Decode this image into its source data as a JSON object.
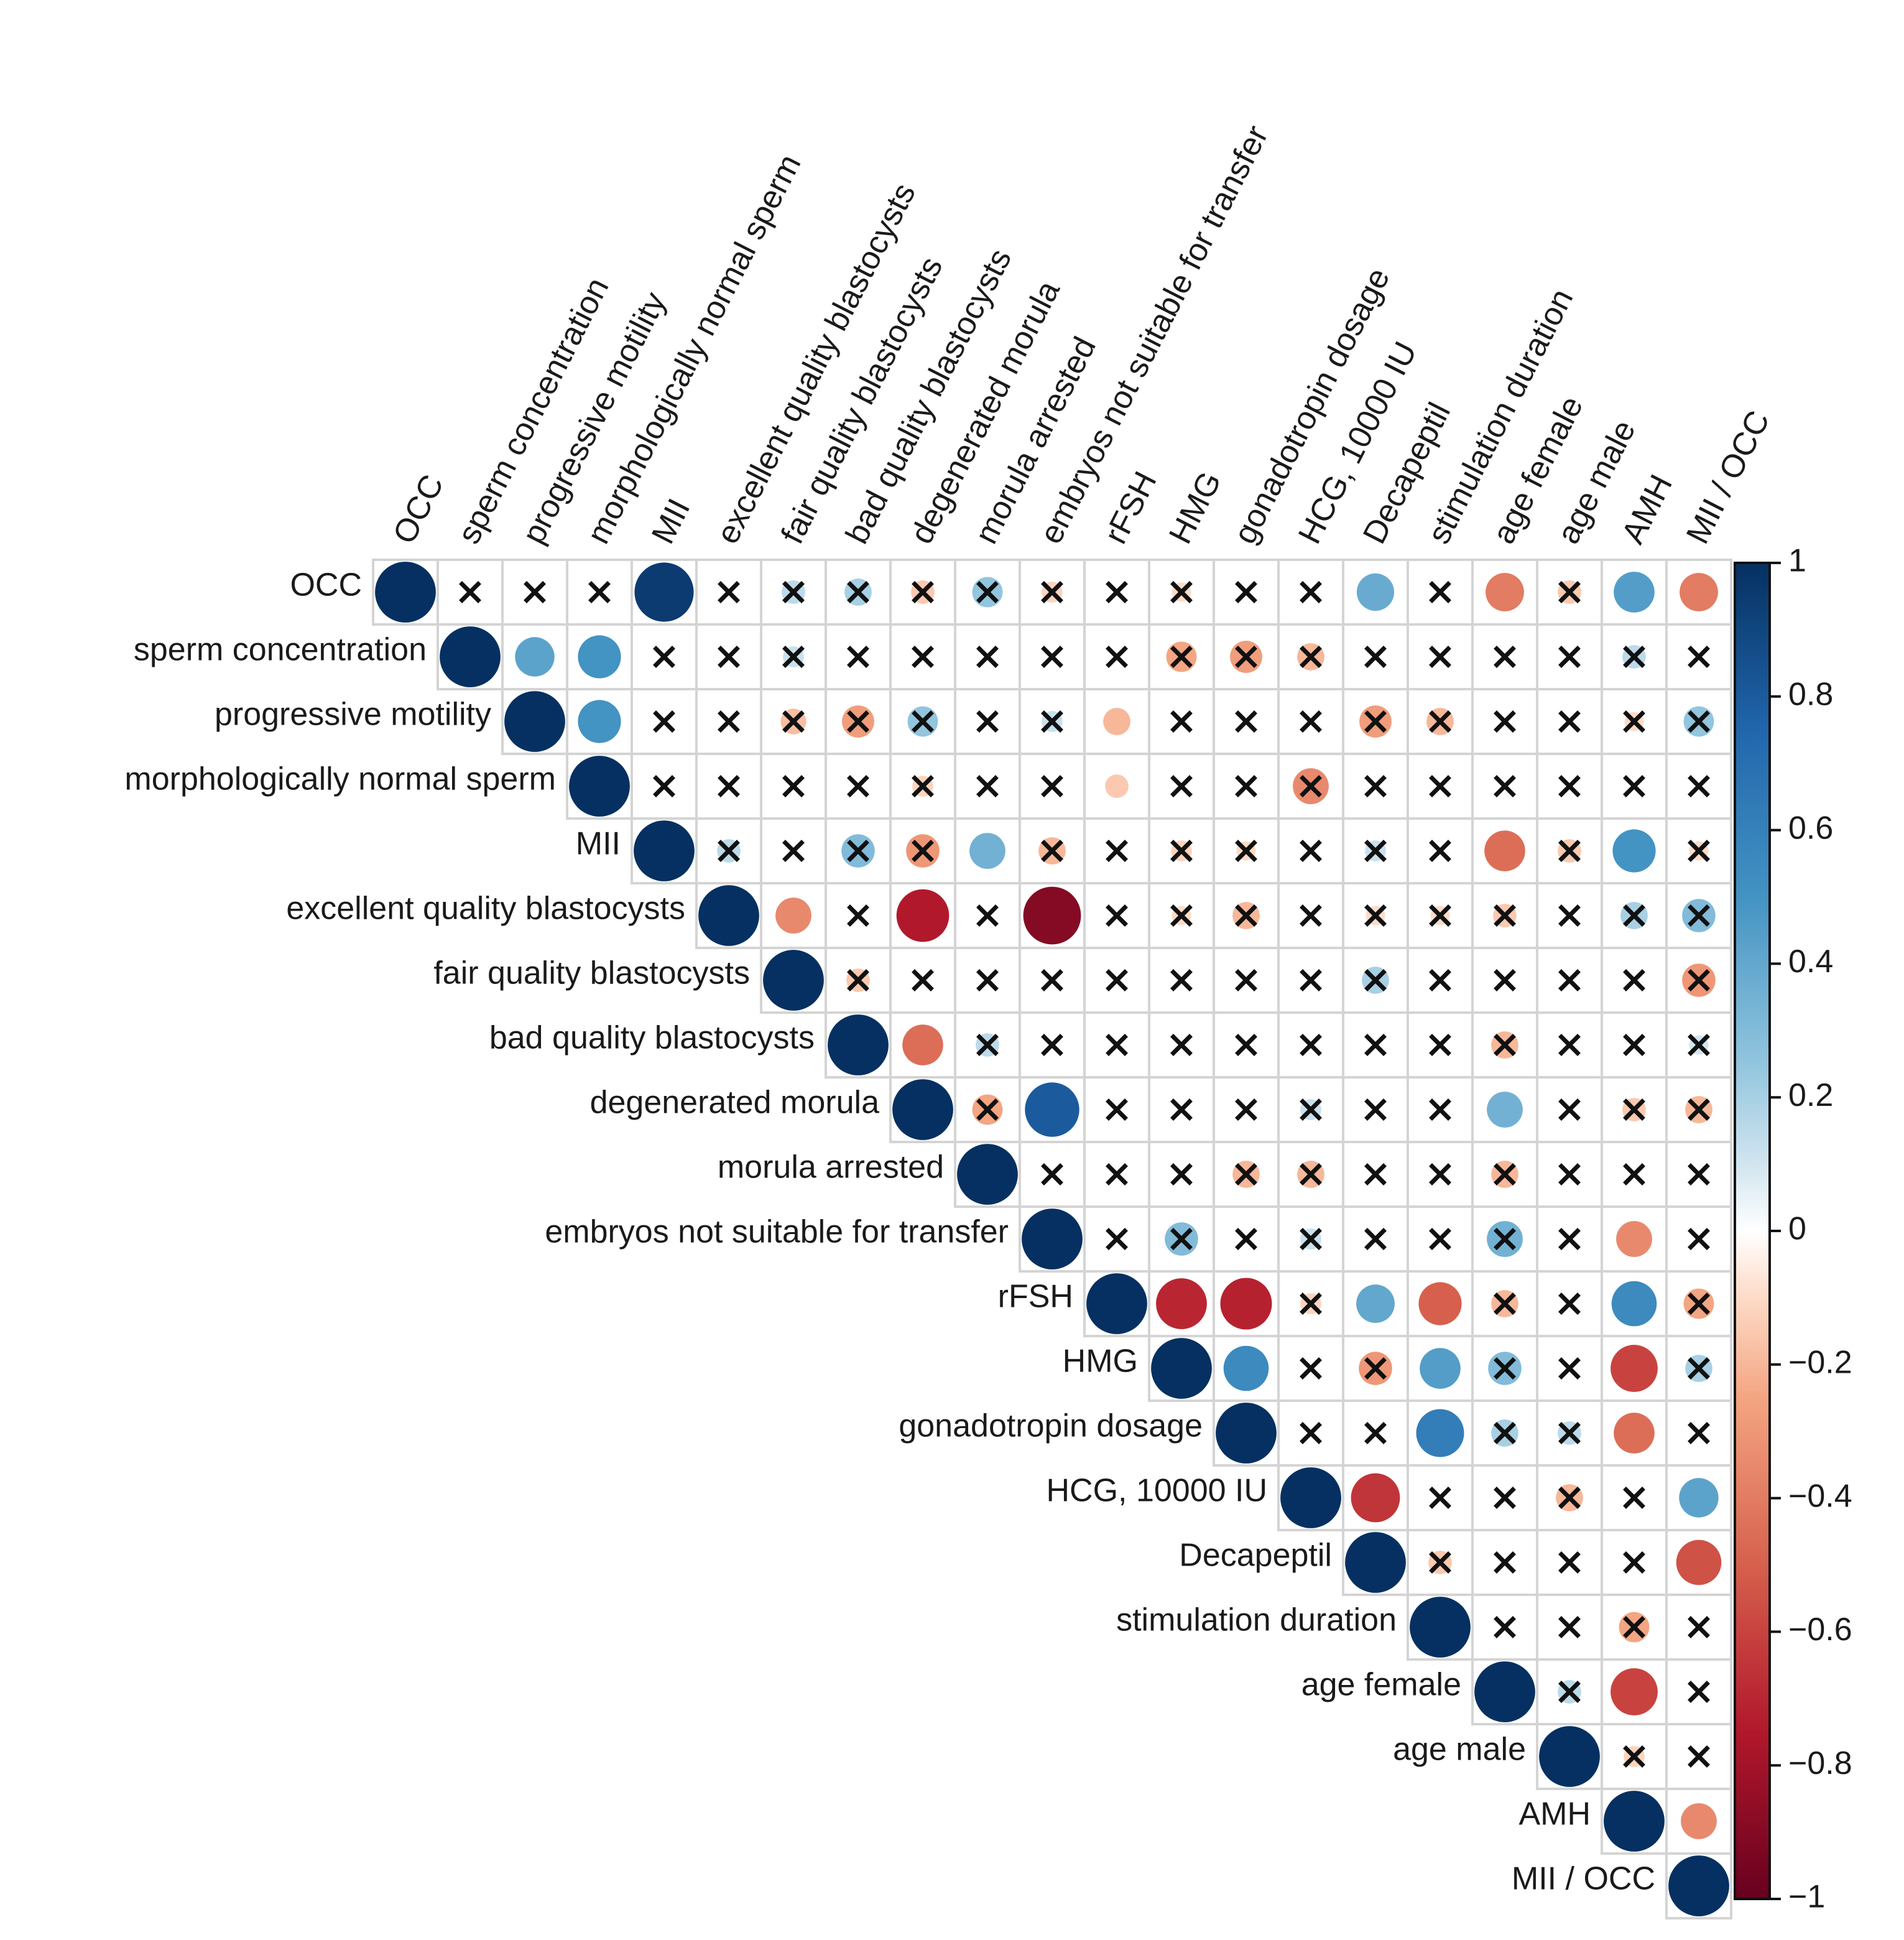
{
  "chart_data": {
    "type": "heatmap",
    "title": "",
    "variables": [
      "OCC",
      "sperm concentration",
      "progressive motility",
      "morphologically normal sperm",
      "MII",
      "excellent quality blastocysts",
      "fair quality  blastocysts",
      "bad quality blastocysts",
      "degenerated  morula",
      "morula   arrested",
      "embryos not suitable for transfer",
      "rFSH",
      "HMG",
      "gonadotropin dosage",
      "HCG, 10000 IU",
      "Decapeptil",
      "stimulation duration",
      "age female",
      "age male",
      "AMH",
      "MII / OCC"
    ],
    "row_labels": [
      "OCC",
      "sperm concentration",
      "progressive motility",
      "morphologically normal sperm",
      "MII",
      "excellent quality blastocysts",
      "fair quality blastocysts",
      "bad quality blastocysts",
      "degenerated morula",
      "morula   arrested",
      "embryos not suitable for transfer",
      "rFSH",
      "HMG",
      "gonadotropin dosage",
      "HCG, 10000 IU",
      "Decapeptil",
      "stimulation duration",
      "age female",
      "age male",
      "AMH",
      "MII / OCC"
    ],
    "layout": "upper-triangle",
    "marker": "circle sized and colored by correlation; x = not significant",
    "matrix": [
      [
        1.0,
        -0.02,
        0.02,
        0.03,
        0.95,
        0.05,
        0.15,
        0.2,
        -0.15,
        0.25,
        -0.12,
        0.02,
        -0.1,
        0.03,
        0.05,
        0.38,
        -0.05,
        -0.4,
        -0.15,
        0.45,
        -0.4
      ],
      [
        null,
        1.0,
        0.42,
        0.5,
        0.02,
        0.02,
        0.12,
        0.05,
        0.03,
        0.02,
        0.02,
        0.02,
        -0.25,
        -0.28,
        -0.2,
        0.02,
        0.05,
        0.02,
        0.05,
        0.15,
        0.02
      ],
      [
        null,
        null,
        1.0,
        0.5,
        0.02,
        0.02,
        -0.18,
        -0.28,
        0.25,
        0.05,
        0.12,
        -0.2,
        0.05,
        0.02,
        0.02,
        -0.28,
        -0.2,
        0.02,
        0.05,
        -0.1,
        0.25
      ],
      [
        null,
        null,
        null,
        1.0,
        0.02,
        0.02,
        0.02,
        0.05,
        -0.12,
        0.02,
        0.05,
        -0.15,
        0.02,
        0.02,
        -0.35,
        0.02,
        0.02,
        0.05,
        0.05,
        0.02,
        0.02
      ],
      [
        null,
        null,
        null,
        null,
        1.0,
        0.15,
        0.02,
        0.3,
        -0.3,
        0.35,
        -0.2,
        0.02,
        -0.12,
        -0.1,
        0.05,
        0.12,
        0.02,
        -0.45,
        -0.15,
        0.5,
        -0.1
      ],
      [
        null,
        null,
        null,
        null,
        null,
        1.0,
        -0.35,
        0.02,
        -0.75,
        0.02,
        -0.9,
        0.02,
        -0.1,
        -0.2,
        0.05,
        -0.1,
        -0.1,
        -0.15,
        0.02,
        0.2,
        0.3
      ],
      [
        null,
        null,
        null,
        null,
        null,
        null,
        1.0,
        -0.15,
        0.02,
        0.02,
        0.02,
        0.02,
        0.02,
        0.05,
        0.05,
        0.2,
        0.02,
        0.05,
        0.02,
        0.05,
        -0.3
      ],
      [
        null,
        null,
        null,
        null,
        null,
        null,
        null,
        1.0,
        -0.45,
        0.15,
        0.02,
        0.02,
        0.02,
        0.02,
        0.02,
        0.05,
        0.02,
        -0.2,
        0.02,
        0.02,
        0.1
      ],
      [
        null,
        null,
        null,
        null,
        null,
        null,
        null,
        null,
        1.0,
        -0.25,
        0.8,
        0.02,
        0.02,
        0.05,
        0.12,
        0.02,
        0.02,
        0.35,
        0.02,
        -0.15,
        -0.2
      ],
      [
        null,
        null,
        null,
        null,
        null,
        null,
        null,
        null,
        null,
        1.0,
        0.02,
        0.02,
        0.02,
        -0.2,
        -0.2,
        0.02,
        0.02,
        -0.2,
        0.02,
        0.02,
        0.02
      ],
      [
        null,
        null,
        null,
        null,
        null,
        null,
        null,
        null,
        null,
        null,
        1.0,
        0.02,
        0.3,
        0.02,
        0.12,
        0.02,
        0.02,
        0.35,
        0.02,
        -0.35,
        0.02
      ],
      [
        null,
        null,
        null,
        null,
        null,
        null,
        null,
        null,
        null,
        null,
        null,
        1.0,
        -0.7,
        -0.72,
        -0.12,
        0.4,
        -0.5,
        -0.2,
        0.02,
        0.55,
        -0.25
      ],
      [
        null,
        null,
        null,
        null,
        null,
        null,
        null,
        null,
        null,
        null,
        null,
        null,
        1.0,
        0.55,
        0.02,
        -0.3,
        0.45,
        0.3,
        0.02,
        -0.6,
        0.2
      ],
      [
        null,
        null,
        null,
        null,
        null,
        null,
        null,
        null,
        null,
        null,
        null,
        null,
        null,
        1.0,
        0.02,
        0.02,
        0.62,
        0.2,
        0.15,
        -0.45,
        0.02
      ],
      [
        null,
        null,
        null,
        null,
        null,
        null,
        null,
        null,
        null,
        null,
        null,
        null,
        null,
        null,
        1.0,
        -0.65,
        0.02,
        0.02,
        -0.2,
        0.02,
        0.42
      ],
      [
        null,
        null,
        null,
        null,
        null,
        null,
        null,
        null,
        null,
        null,
        null,
        null,
        null,
        null,
        null,
        1.0,
        -0.15,
        0.02,
        0.05,
        0.05,
        -0.55
      ],
      [
        null,
        null,
        null,
        null,
        null,
        null,
        null,
        null,
        null,
        null,
        null,
        null,
        null,
        null,
        null,
        null,
        1.0,
        0.02,
        0.02,
        -0.25,
        0.02
      ],
      [
        null,
        null,
        null,
        null,
        null,
        null,
        null,
        null,
        null,
        null,
        null,
        null,
        null,
        null,
        null,
        null,
        null,
        1.0,
        0.15,
        -0.6,
        0.02
      ],
      [
        null,
        null,
        null,
        null,
        null,
        null,
        null,
        null,
        null,
        null,
        null,
        null,
        null,
        null,
        null,
        null,
        null,
        null,
        1.0,
        -0.12,
        0.02
      ],
      [
        null,
        null,
        null,
        null,
        null,
        null,
        null,
        null,
        null,
        null,
        null,
        null,
        null,
        null,
        null,
        null,
        null,
        null,
        null,
        1.0,
        -0.35
      ],
      [
        null,
        null,
        null,
        null,
        null,
        null,
        null,
        null,
        null,
        null,
        null,
        null,
        null,
        null,
        null,
        null,
        null,
        null,
        null,
        null,
        1.0
      ]
    ],
    "not_significant": [
      [
        0,
        1
      ],
      [
        0,
        2
      ],
      [
        0,
        3
      ],
      [
        0,
        5
      ],
      [
        0,
        6
      ],
      [
        0,
        7
      ],
      [
        0,
        8
      ],
      [
        0,
        9
      ],
      [
        0,
        10
      ],
      [
        0,
        11
      ],
      [
        0,
        12
      ],
      [
        0,
        13
      ],
      [
        0,
        14
      ],
      [
        0,
        16
      ],
      [
        0,
        18
      ],
      [
        1,
        4
      ],
      [
        1,
        5
      ],
      [
        1,
        6
      ],
      [
        1,
        7
      ],
      [
        1,
        8
      ],
      [
        1,
        9
      ],
      [
        1,
        10
      ],
      [
        1,
        11
      ],
      [
        1,
        12
      ],
      [
        1,
        13
      ],
      [
        1,
        14
      ],
      [
        1,
        15
      ],
      [
        1,
        16
      ],
      [
        1,
        17
      ],
      [
        1,
        18
      ],
      [
        1,
        19
      ],
      [
        1,
        20
      ],
      [
        2,
        4
      ],
      [
        2,
        5
      ],
      [
        2,
        6
      ],
      [
        2,
        7
      ],
      [
        2,
        8
      ],
      [
        2,
        9
      ],
      [
        2,
        10
      ],
      [
        2,
        12
      ],
      [
        2,
        13
      ],
      [
        2,
        14
      ],
      [
        2,
        15
      ],
      [
        2,
        16
      ],
      [
        2,
        17
      ],
      [
        2,
        18
      ],
      [
        2,
        19
      ],
      [
        2,
        20
      ],
      [
        3,
        4
      ],
      [
        3,
        5
      ],
      [
        3,
        6
      ],
      [
        3,
        7
      ],
      [
        3,
        8
      ],
      [
        3,
        9
      ],
      [
        3,
        10
      ],
      [
        3,
        12
      ],
      [
        3,
        13
      ],
      [
        3,
        14
      ],
      [
        3,
        15
      ],
      [
        3,
        16
      ],
      [
        3,
        17
      ],
      [
        3,
        18
      ],
      [
        3,
        19
      ],
      [
        3,
        20
      ],
      [
        4,
        5
      ],
      [
        4,
        6
      ],
      [
        4,
        7
      ],
      [
        4,
        8
      ],
      [
        4,
        10
      ],
      [
        4,
        11
      ],
      [
        4,
        12
      ],
      [
        4,
        13
      ],
      [
        4,
        14
      ],
      [
        4,
        15
      ],
      [
        4,
        16
      ],
      [
        4,
        18
      ],
      [
        4,
        20
      ],
      [
        5,
        7
      ],
      [
        5,
        9
      ],
      [
        5,
        11
      ],
      [
        5,
        12
      ],
      [
        5,
        13
      ],
      [
        5,
        14
      ],
      [
        5,
        15
      ],
      [
        5,
        16
      ],
      [
        5,
        17
      ],
      [
        5,
        18
      ],
      [
        5,
        19
      ],
      [
        5,
        20
      ],
      [
        6,
        7
      ],
      [
        6,
        8
      ],
      [
        6,
        9
      ],
      [
        6,
        10
      ],
      [
        6,
        11
      ],
      [
        6,
        12
      ],
      [
        6,
        13
      ],
      [
        6,
        14
      ],
      [
        6,
        15
      ],
      [
        6,
        16
      ],
      [
        6,
        17
      ],
      [
        6,
        18
      ],
      [
        6,
        19
      ],
      [
        6,
        20
      ],
      [
        7,
        9
      ],
      [
        7,
        10
      ],
      [
        7,
        11
      ],
      [
        7,
        12
      ],
      [
        7,
        13
      ],
      [
        7,
        14
      ],
      [
        7,
        15
      ],
      [
        7,
        16
      ],
      [
        7,
        17
      ],
      [
        7,
        18
      ],
      [
        7,
        19
      ],
      [
        7,
        20
      ],
      [
        8,
        9
      ],
      [
        8,
        11
      ],
      [
        8,
        12
      ],
      [
        8,
        13
      ],
      [
        8,
        14
      ],
      [
        8,
        15
      ],
      [
        8,
        16
      ],
      [
        8,
        18
      ],
      [
        8,
        19
      ],
      [
        8,
        20
      ],
      [
        9,
        10
      ],
      [
        9,
        11
      ],
      [
        9,
        12
      ],
      [
        9,
        13
      ],
      [
        9,
        14
      ],
      [
        9,
        15
      ],
      [
        9,
        16
      ],
      [
        9,
        17
      ],
      [
        9,
        18
      ],
      [
        9,
        19
      ],
      [
        9,
        20
      ],
      [
        10,
        11
      ],
      [
        10,
        12
      ],
      [
        10,
        13
      ],
      [
        10,
        14
      ],
      [
        10,
        15
      ],
      [
        10,
        16
      ],
      [
        10,
        17
      ],
      [
        10,
        18
      ],
      [
        10,
        20
      ],
      [
        11,
        14
      ],
      [
        11,
        17
      ],
      [
        11,
        18
      ],
      [
        11,
        20
      ],
      [
        12,
        14
      ],
      [
        12,
        15
      ],
      [
        12,
        17
      ],
      [
        12,
        18
      ],
      [
        12,
        20
      ],
      [
        13,
        14
      ],
      [
        13,
        15
      ],
      [
        13,
        17
      ],
      [
        13,
        18
      ],
      [
        13,
        20
      ],
      [
        14,
        16
      ],
      [
        14,
        17
      ],
      [
        14,
        18
      ],
      [
        14,
        19
      ],
      [
        15,
        16
      ],
      [
        15,
        17
      ],
      [
        15,
        18
      ],
      [
        15,
        19
      ],
      [
        16,
        17
      ],
      [
        16,
        18
      ],
      [
        16,
        19
      ],
      [
        16,
        20
      ],
      [
        17,
        18
      ],
      [
        17,
        20
      ],
      [
        18,
        19
      ],
      [
        18,
        20
      ]
    ],
    "colorbar": {
      "min": -1,
      "max": 1,
      "ticks": [
        1,
        0.8,
        0.6,
        0.4,
        0.2,
        0,
        -0.2,
        -0.4,
        -0.6,
        -0.8,
        -1
      ],
      "tick_labels": [
        "1",
        "0.8",
        "0.6",
        "0.4",
        "0.2",
        "0",
        "−0.2",
        "−0.4",
        "−0.6",
        "−0.8",
        "−1"
      ]
    },
    "colors": {
      "negative_extreme": "#67001f",
      "negative_strong": "#d6604d",
      "negative_light": "#fddbc7",
      "zero": "#ffffff",
      "positive_light": "#d1e5f0",
      "positive_strong": "#4393c3",
      "positive_extreme": "#053061"
    }
  }
}
